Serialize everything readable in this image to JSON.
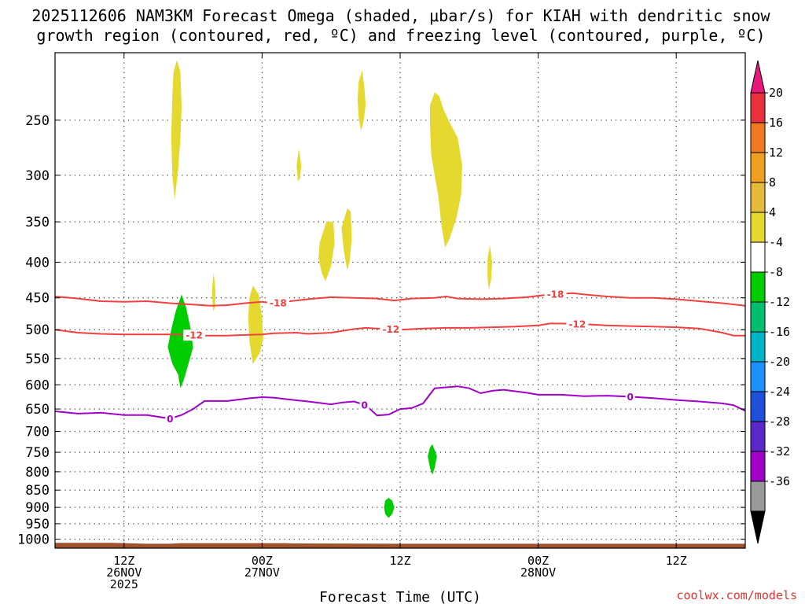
{
  "chart_data": {
    "type": "heatmap",
    "title_line1": "2025112606 NAM3KM Forecast Omega (shaded, μbar/s) for KIAH with dendritic snow",
    "title_line2": "growth region (contoured, red, ºC) and freezing level (contoured, purple, ºC)",
    "xlabel": "Forecast Time (UTC)",
    "credit": "coolwx.com/models",
    "credit_color": "#e03030",
    "x_unit": "forecast hour",
    "xlim": [
      0,
      60
    ],
    "ylim_hpa": [
      200,
      1030
    ],
    "x_ticks": [
      {
        "hour": 6,
        "lines": [
          "12Z",
          "26NOV",
          "2025"
        ]
      },
      {
        "hour": 18,
        "lines": [
          "00Z",
          "27NOV"
        ]
      },
      {
        "hour": 30,
        "lines": [
          "12Z"
        ]
      },
      {
        "hour": 42,
        "lines": [
          "00Z",
          "28NOV"
        ]
      },
      {
        "hour": 54,
        "lines": [
          "12Z"
        ]
      }
    ],
    "y_ticks": [
      {
        "p": 250,
        "label": "250"
      },
      {
        "p": 300,
        "label": "300"
      },
      {
        "p": 350,
        "label": "350"
      },
      {
        "p": 400,
        "label": "400"
      },
      {
        "p": 450,
        "label": "450"
      },
      {
        "p": 500,
        "label": "500"
      },
      {
        "p": 550,
        "label": "550"
      },
      {
        "p": 600,
        "label": "600"
      },
      {
        "p": 650,
        "label": "650"
      },
      {
        "p": 700,
        "label": "700"
      },
      {
        "p": 750,
        "label": "750"
      },
      {
        "p": 800,
        "label": "800"
      },
      {
        "p": 850,
        "label": "850"
      },
      {
        "p": 900,
        "label": "900"
      },
      {
        "p": 950,
        "label": "950"
      },
      {
        "p": 1000,
        "label": "1000"
      }
    ],
    "omega_regions": [
      {
        "color": "#e5d930",
        "pts": [
          [
            10.6,
            205
          ],
          [
            10.9,
            213
          ],
          [
            11.0,
            240
          ],
          [
            10.9,
            265
          ],
          [
            10.7,
            295
          ],
          [
            10.4,
            325
          ],
          [
            10.2,
            300
          ],
          [
            10.1,
            265
          ],
          [
            10.2,
            230
          ],
          [
            10.3,
            213
          ]
        ]
      },
      {
        "color": "#e5d930",
        "pts": [
          [
            26.7,
            212
          ],
          [
            26.9,
            225
          ],
          [
            27.0,
            238
          ],
          [
            26.8,
            252
          ],
          [
            26.6,
            259
          ],
          [
            26.4,
            248
          ],
          [
            26.3,
            234
          ],
          [
            26.4,
            220
          ]
        ]
      },
      {
        "color": "#e5d930",
        "pts": [
          [
            21.2,
            275
          ],
          [
            21.4,
            290
          ],
          [
            21.3,
            303
          ],
          [
            21.1,
            306
          ],
          [
            21.0,
            290
          ]
        ]
      },
      {
        "color": "#e5d930",
        "pts": [
          [
            33.0,
            228
          ],
          [
            33.4,
            231
          ],
          [
            33.8,
            242
          ],
          [
            34.3,
            252
          ],
          [
            35.0,
            265
          ],
          [
            35.4,
            290
          ],
          [
            35.3,
            320
          ],
          [
            34.9,
            345
          ],
          [
            34.3,
            370
          ],
          [
            33.9,
            381
          ],
          [
            33.6,
            355
          ],
          [
            33.3,
            320
          ],
          [
            33.0,
            300
          ],
          [
            32.7,
            280
          ],
          [
            32.6,
            255
          ],
          [
            32.6,
            238
          ]
        ]
      },
      {
        "color": "#e5d930",
        "pts": [
          [
            23.6,
            350
          ],
          [
            24.2,
            350
          ],
          [
            24.3,
            375
          ],
          [
            24.0,
            405
          ],
          [
            23.5,
            426
          ],
          [
            23.2,
            415
          ],
          [
            22.9,
            395
          ],
          [
            23.0,
            375
          ]
        ]
      },
      {
        "color": "#e5d930",
        "pts": [
          [
            25.4,
            335
          ],
          [
            25.7,
            338
          ],
          [
            25.8,
            370
          ],
          [
            25.6,
            400
          ],
          [
            25.4,
            411
          ],
          [
            25.1,
            385
          ],
          [
            24.9,
            357
          ]
        ]
      },
      {
        "color": "#e5d930",
        "pts": [
          [
            37.8,
            378
          ],
          [
            38.0,
            400
          ],
          [
            37.9,
            425
          ],
          [
            37.7,
            438
          ],
          [
            37.6,
            420
          ],
          [
            37.6,
            395
          ]
        ]
      },
      {
        "color": "#e5d930",
        "pts": [
          [
            13.8,
            415
          ],
          [
            13.95,
            440
          ],
          [
            13.9,
            465
          ],
          [
            13.75,
            470
          ],
          [
            13.65,
            445
          ],
          [
            13.7,
            425
          ]
        ]
      },
      {
        "color": "#e5d930",
        "pts": [
          [
            17.2,
            432
          ],
          [
            17.7,
            445
          ],
          [
            18.0,
            480
          ],
          [
            18.1,
            515
          ],
          [
            17.8,
            540
          ],
          [
            17.2,
            560
          ],
          [
            16.9,
            520
          ],
          [
            16.8,
            480
          ],
          [
            16.9,
            450
          ]
        ]
      },
      {
        "color": "#00cd00",
        "pts": [
          [
            11.0,
            445
          ],
          [
            11.4,
            465
          ],
          [
            11.8,
            500
          ],
          [
            12.0,
            530
          ],
          [
            11.6,
            560
          ],
          [
            11.2,
            590
          ],
          [
            10.9,
            607
          ],
          [
            10.7,
            580
          ],
          [
            10.2,
            560
          ],
          [
            9.8,
            530
          ],
          [
            10.1,
            500
          ],
          [
            10.5,
            470
          ]
        ]
      },
      {
        "color": "#00cd00",
        "pts": [
          [
            32.8,
            730
          ],
          [
            33.2,
            760
          ],
          [
            33.0,
            790
          ],
          [
            32.8,
            808
          ],
          [
            32.6,
            790
          ],
          [
            32.4,
            760
          ],
          [
            32.6,
            738
          ]
        ]
      },
      {
        "color": "#00cd00",
        "pts": [
          [
            29.0,
            872
          ],
          [
            29.3,
            880
          ],
          [
            29.5,
            900
          ],
          [
            29.3,
            920
          ],
          [
            29.0,
            932
          ],
          [
            28.7,
            920
          ],
          [
            28.6,
            900
          ],
          [
            28.7,
            880
          ]
        ]
      }
    ],
    "series": [
      {
        "name": "-18",
        "color": "#f04040",
        "labels": [
          {
            "hour": 19.4,
            "text": "-18"
          },
          {
            "hour": 43.5,
            "text": "-18"
          }
        ],
        "points": [
          [
            0,
            448
          ],
          [
            2,
            451
          ],
          [
            4,
            455
          ],
          [
            6,
            456
          ],
          [
            8,
            455
          ],
          [
            10,
            458
          ],
          [
            12,
            460
          ],
          [
            13.5,
            462
          ],
          [
            15,
            461
          ],
          [
            16.5,
            458
          ],
          [
            18,
            456
          ],
          [
            19,
            458
          ],
          [
            20,
            456
          ],
          [
            22,
            452
          ],
          [
            24,
            449
          ],
          [
            26,
            450
          ],
          [
            28,
            451
          ],
          [
            29.5,
            454
          ],
          [
            31,
            451
          ],
          [
            33,
            450
          ],
          [
            34,
            448
          ],
          [
            35,
            451
          ],
          [
            37,
            452
          ],
          [
            39,
            451
          ],
          [
            41,
            449
          ],
          [
            43,
            445
          ],
          [
            45,
            443
          ],
          [
            46,
            445
          ],
          [
            48,
            448
          ],
          [
            50,
            450
          ],
          [
            52,
            450
          ],
          [
            54,
            452
          ],
          [
            56,
            455
          ],
          [
            58,
            458
          ],
          [
            60,
            462
          ]
        ]
      },
      {
        "name": "-12",
        "color": "#f04040",
        "labels": [
          {
            "hour": 12.1,
            "text": "-12"
          },
          {
            "hour": 29.2,
            "text": "-12"
          },
          {
            "hour": 45.4,
            "text": "-12"
          }
        ],
        "points": [
          [
            0,
            500
          ],
          [
            2,
            505
          ],
          [
            4,
            507
          ],
          [
            6,
            508
          ],
          [
            8,
            508
          ],
          [
            10,
            508
          ],
          [
            12,
            509
          ],
          [
            13,
            510
          ],
          [
            15,
            510
          ],
          [
            16,
            509
          ],
          [
            18,
            508
          ],
          [
            19,
            506
          ],
          [
            21,
            505
          ],
          [
            22,
            507
          ],
          [
            24,
            505
          ],
          [
            26,
            499
          ],
          [
            27,
            497
          ],
          [
            28,
            498
          ],
          [
            30,
            500
          ],
          [
            32,
            498
          ],
          [
            34,
            497
          ],
          [
            36,
            497
          ],
          [
            38,
            496
          ],
          [
            40,
            495
          ],
          [
            42,
            493
          ],
          [
            43,
            490
          ],
          [
            44,
            490
          ],
          [
            46,
            491
          ],
          [
            48,
            493
          ],
          [
            50,
            494
          ],
          [
            52,
            495
          ],
          [
            54,
            496
          ],
          [
            56,
            498
          ],
          [
            58,
            505
          ],
          [
            59,
            510
          ],
          [
            60,
            510
          ]
        ]
      },
      {
        "name": "0",
        "color": "#a000c8",
        "labels": [
          {
            "hour": 10.0,
            "text": "0"
          },
          {
            "hour": 26.9,
            "text": "0"
          },
          {
            "hour": 50.0,
            "text": "0"
          }
        ],
        "points": [
          [
            0,
            655
          ],
          [
            2,
            660
          ],
          [
            4,
            658
          ],
          [
            6,
            663
          ],
          [
            8,
            663
          ],
          [
            10,
            671
          ],
          [
            11,
            663
          ],
          [
            12,
            650
          ],
          [
            13,
            633
          ],
          [
            15,
            633
          ],
          [
            16,
            630
          ],
          [
            17,
            627
          ],
          [
            18,
            625
          ],
          [
            19,
            626
          ],
          [
            20,
            629
          ],
          [
            22,
            634
          ],
          [
            24,
            640
          ],
          [
            25,
            636
          ],
          [
            26,
            634
          ],
          [
            27,
            642
          ],
          [
            28,
            664
          ],
          [
            29,
            662
          ],
          [
            30,
            650
          ],
          [
            31,
            648
          ],
          [
            32,
            638
          ],
          [
            32.5,
            622
          ],
          [
            33,
            607
          ],
          [
            34,
            605
          ],
          [
            35,
            603
          ],
          [
            36,
            607
          ],
          [
            37,
            617
          ],
          [
            38,
            612
          ],
          [
            39,
            610
          ],
          [
            40,
            613
          ],
          [
            41,
            616
          ],
          [
            42,
            620
          ],
          [
            44,
            620
          ],
          [
            46,
            623
          ],
          [
            48,
            622
          ],
          [
            50,
            624
          ],
          [
            52,
            627
          ],
          [
            54,
            631
          ],
          [
            56,
            634
          ],
          [
            58,
            638
          ],
          [
            59,
            642
          ],
          [
            60,
            654
          ]
        ]
      }
    ],
    "colorbar": {
      "levels": [
        "20",
        "16",
        "12",
        "8",
        "4",
        "-4",
        "-8",
        "-12",
        "-16",
        "-20",
        "-24",
        "-28",
        "-32",
        "-36"
      ],
      "colors": [
        "#e8303e",
        "#f07820",
        "#f0a020",
        "#e6ba3a",
        "#e5d930",
        "#ffffff",
        "#00cd00",
        "#00c070",
        "#00b4c8",
        "#1e90ff",
        "#1e50dc",
        "#5a28c8",
        "#a000c8",
        "#9a9a9a"
      ],
      "top_triangle_color": "#e8187a",
      "bottom_triangle_color": "#000000"
    },
    "ground_color": "#a0522d"
  }
}
